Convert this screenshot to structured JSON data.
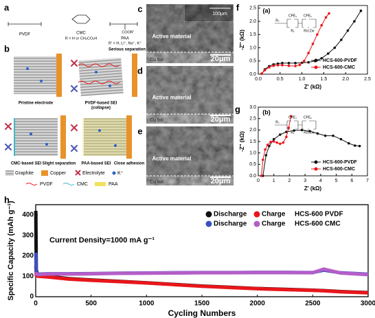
{
  "panels": {
    "a": {
      "label": "a",
      "names": [
        "PVDF",
        "CMC",
        "PAA"
      ],
      "notes": [
        "R = H or CH₂CO₂H",
        "R' = H, Li⁺, Na⁺, K⁺"
      ],
      "groups": [
        "COOR'"
      ]
    },
    "b": {
      "label": "b",
      "captions": [
        "Pristine electrode",
        "PVDF-based SEI",
        "(collapse)",
        "Serious separation",
        "CMC-based SEI",
        "Slight separation",
        "PAA-based SEI",
        "Close adhesion"
      ],
      "legend": [
        "Graphite",
        "Copper",
        "Electrolyte",
        "K⁺",
        "PVDF",
        "CMC",
        "PAA"
      ]
    },
    "sem": [
      {
        "label": "c",
        "layer": "Active material",
        "foil": "Cu foil",
        "scale": "20μm",
        "inset_scale": "100μm"
      },
      {
        "label": "d",
        "layer": "Active material",
        "foil": "Cu foil",
        "scale": "20μm"
      },
      {
        "label": "e",
        "layer": "Active material",
        "foil": "Cu foil",
        "scale": "20μm"
      }
    ]
  },
  "chart_data": [
    {
      "type": "line",
      "panel": "f",
      "tag": "(a)",
      "circuit": [
        "CPE₁",
        "CPE₂",
        "Rₛ",
        "R₁",
        "Rct",
        "Zw"
      ],
      "x_label": "Z' (kΩ)",
      "y_label": "-Z'' (kΩ)",
      "legend": "lower right",
      "xlim": [
        0,
        2.5
      ],
      "xticks": [
        {
          "value": 0,
          "label": "0.0"
        },
        0.5,
        {
          "value": 1,
          "label": "1.0"
        },
        1.5,
        {
          "value": 2,
          "label": "2.0"
        },
        2.5
      ],
      "ylim": [
        0,
        2.6
      ],
      "yticks": [
        {
          "value": 0,
          "label": "0.0"
        },
        0.5,
        {
          "value": 1,
          "label": "1.0"
        },
        1.5,
        {
          "value": 2,
          "label": "2.0"
        },
        2.5
      ],
      "series": [
        {
          "name": "HCS-600-PVDF",
          "color": "#111111",
          "x": [
            0.08,
            0.15,
            0.25,
            0.35,
            0.45,
            0.55,
            0.7,
            0.85,
            1.0,
            1.15,
            1.3,
            1.45,
            1.6,
            1.75,
            1.9,
            2.05,
            2.2,
            2.35
          ],
          "values": [
            0.02,
            0.18,
            0.3,
            0.37,
            0.4,
            0.42,
            0.42,
            0.42,
            0.43,
            0.45,
            0.5,
            0.6,
            0.78,
            1.0,
            1.3,
            1.65,
            2.0,
            2.4
          ]
        },
        {
          "name": "HCS-600-CMC",
          "color": "#e8161b",
          "x": [
            0.08,
            0.15,
            0.25,
            0.35,
            0.45,
            0.55,
            0.7,
            0.85,
            0.95,
            1.05,
            1.15,
            1.25,
            1.35,
            1.45,
            1.55,
            1.62
          ],
          "values": [
            0.02,
            0.15,
            0.26,
            0.32,
            0.34,
            0.34,
            0.32,
            0.31,
            0.35,
            0.5,
            0.8,
            1.15,
            1.5,
            1.85,
            2.15,
            2.3
          ]
        }
      ]
    },
    {
      "type": "line",
      "panel": "g",
      "tag": "(b)",
      "circuit": [
        "CPE₁",
        "CPE₂",
        "Rₛ",
        "R₁",
        "Rct",
        "Zw"
      ],
      "x_label": "Z' (kΩ)",
      "y_label": "-Z'' (kΩ)",
      "legend": "lower right",
      "xlim": [
        0,
        7
      ],
      "xticks": [
        0,
        1,
        2,
        3,
        4,
        5,
        6,
        7
      ],
      "ylim": [
        0,
        3
      ],
      "yticks": [
        {
          "value": 0,
          "label": "0.0"
        },
        0.5,
        {
          "value": 1,
          "label": "1.0"
        },
        1.5,
        {
          "value": 2,
          "label": "2.0"
        },
        2.5,
        {
          "value": 3,
          "label": "3.0"
        }
      ],
      "series": [
        {
          "name": "HCS-600-PVDF",
          "color": "#111111",
          "x": [
            0.3,
            0.5,
            0.7,
            1.0,
            1.4,
            1.8,
            2.3,
            2.8,
            3.3,
            3.8,
            4.3,
            4.8,
            5.3,
            5.8,
            6.2,
            6.5
          ],
          "values": [
            0.0,
            0.9,
            1.3,
            1.6,
            1.8,
            1.92,
            1.98,
            2.0,
            1.95,
            1.85,
            1.75,
            1.75,
            1.6,
            1.42,
            1.32,
            1.3
          ]
        },
        {
          "name": "HCS-600-CMC",
          "color": "#e8161b",
          "x": [
            0.2,
            0.3,
            0.45,
            0.6,
            0.8,
            1.0,
            1.2,
            1.4,
            1.6,
            1.8,
            1.95,
            2.1
          ],
          "values": [
            0.0,
            0.7,
            1.15,
            1.35,
            1.48,
            1.5,
            1.45,
            1.4,
            1.45,
            1.7,
            2.1,
            2.6
          ]
        }
      ]
    },
    {
      "type": "thick-line",
      "panel": "h",
      "annotation": "Current Density=1000 mA g⁻¹",
      "x_label": "Cycling Numbers",
      "y_label": "Specific Capacity (mAh g⁻¹)",
      "legend": "upper right",
      "legend_groups": [
        "HCS-600 PVDF",
        "HCS-600 CMC"
      ],
      "xlim": [
        0,
        3000
      ],
      "xticks": [
        0,
        500,
        1000,
        1500,
        2000,
        2500,
        3000
      ],
      "ylim": [
        0,
        450
      ],
      "yticks": [
        0,
        100,
        200,
        300,
        400
      ],
      "x": [
        1,
        5,
        20,
        100,
        300,
        500,
        750,
        1000,
        1250,
        1500,
        1750,
        2000,
        2250,
        2500,
        2600,
        2750,
        3000
      ],
      "series": [
        {
          "name": "Discharge",
          "color": "#111111",
          "values": [
            420,
            130,
            105,
            100,
            88,
            82,
            75,
            68,
            60,
            52,
            46,
            40,
            36,
            32,
            30,
            25,
            20
          ]
        },
        {
          "name": "Charge",
          "color": "#e8161b",
          "values": [
            150,
            105,
            100,
            97,
            86,
            80,
            74,
            67,
            59,
            51,
            45,
            39,
            35,
            31,
            29,
            24,
            19
          ]
        },
        {
          "name": "Discharge",
          "color": "#3b4fc2",
          "values": [
            215,
            120,
            110,
            112,
            112,
            113,
            115,
            116,
            117,
            118,
            118,
            119,
            119,
            118,
            130,
            117,
            110
          ]
        },
        {
          "name": "Charge",
          "color": "#b45ec8",
          "values": [
            120,
            112,
            108,
            111,
            111,
            112,
            114,
            115,
            116,
            117,
            117,
            118,
            118,
            117,
            135,
            116,
            108
          ]
        }
      ]
    }
  ]
}
